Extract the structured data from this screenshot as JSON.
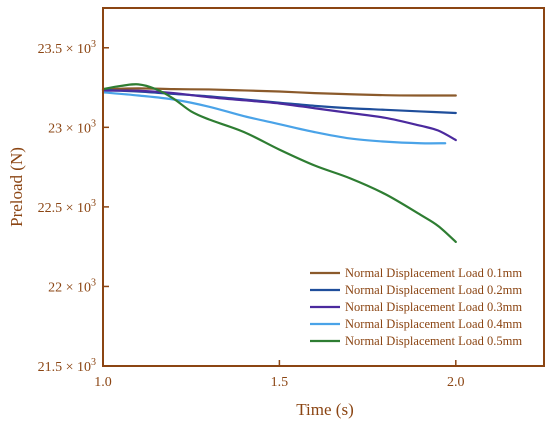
{
  "chart_data": {
    "type": "line",
    "xlabel": "Time (s)",
    "ylabel": "Preload (N)",
    "xlim": [
      1.0,
      2.25
    ],
    "ylim": [
      21.5,
      23.75
    ],
    "x_ticks": [
      1.0,
      1.5,
      2.0
    ],
    "x_tick_labels": [
      "1.0",
      "1.5",
      "2.0"
    ],
    "y_ticks": [
      {
        "value": 21.5,
        "mantissa": "21.5",
        "exp": "3"
      },
      {
        "value": 22.0,
        "mantissa": "22",
        "exp": "3"
      },
      {
        "value": 22.5,
        "mantissa": "22.5",
        "exp": "3"
      },
      {
        "value": 23.0,
        "mantissa": "23",
        "exp": "3"
      },
      {
        "value": 23.5,
        "mantissa": "23.5",
        "exp": "3"
      }
    ],
    "y_tick_times": "× 10",
    "axis_color": "#8b4513",
    "grid": false,
    "legend_position": "bottom-right",
    "series": [
      {
        "name": "Normal Displacement Load 0.1mm",
        "color": "#8b5a2b",
        "x": [
          1.0,
          1.1,
          1.2,
          1.3,
          1.4,
          1.5,
          1.6,
          1.7,
          1.8,
          1.9,
          2.0
        ],
        "y": [
          23.24,
          23.245,
          23.24,
          23.238,
          23.232,
          23.225,
          23.215,
          23.208,
          23.202,
          23.2,
          23.2
        ]
      },
      {
        "name": "Normal Displacement Load 0.2mm",
        "color": "#1f4e9b",
        "x": [
          1.0,
          1.1,
          1.2,
          1.3,
          1.4,
          1.5,
          1.6,
          1.7,
          1.8,
          1.9,
          2.0
        ],
        "y": [
          23.235,
          23.225,
          23.21,
          23.195,
          23.175,
          23.155,
          23.135,
          23.12,
          23.11,
          23.1,
          23.09
        ]
      },
      {
        "name": "Normal Displacement Load 0.3mm",
        "color": "#4b2a9e",
        "x": [
          1.0,
          1.1,
          1.2,
          1.3,
          1.4,
          1.5,
          1.6,
          1.7,
          1.8,
          1.9,
          1.95,
          2.0
        ],
        "y": [
          23.23,
          23.23,
          23.215,
          23.19,
          23.17,
          23.15,
          23.12,
          23.09,
          23.06,
          23.01,
          22.98,
          22.92
        ]
      },
      {
        "name": "Normal Displacement Load 0.4mm",
        "color": "#4aa3e8",
        "x": [
          1.0,
          1.1,
          1.2,
          1.3,
          1.4,
          1.5,
          1.6,
          1.7,
          1.8,
          1.9,
          1.97
        ],
        "y": [
          23.22,
          23.2,
          23.175,
          23.13,
          23.07,
          23.02,
          22.97,
          22.93,
          22.91,
          22.9,
          22.9
        ]
      },
      {
        "name": "Normal Displacement Load 0.5mm",
        "color": "#2e7d32",
        "x": [
          1.0,
          1.05,
          1.1,
          1.15,
          1.2,
          1.25,
          1.3,
          1.4,
          1.5,
          1.6,
          1.7,
          1.8,
          1.9,
          1.95,
          2.0
        ],
        "y": [
          23.24,
          23.26,
          23.27,
          23.24,
          23.18,
          23.1,
          23.05,
          22.97,
          22.86,
          22.76,
          22.68,
          22.58,
          22.45,
          22.38,
          22.28
        ]
      }
    ]
  }
}
